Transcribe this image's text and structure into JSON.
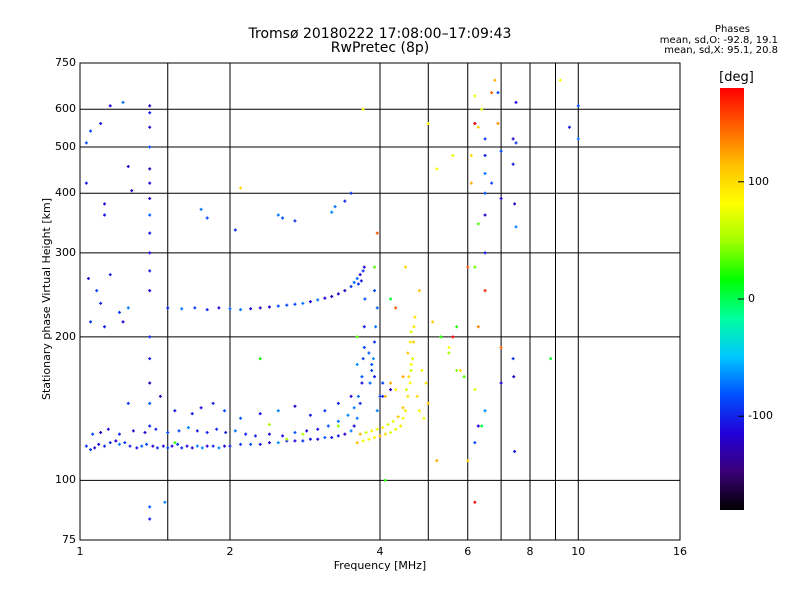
{
  "title_line1": "Tromsø 20180222 17:08:00–17:09:43",
  "title_line2": "RwPretec (8p)",
  "phases": {
    "heading": "Phases",
    "line_o": "mean, sd,O: -92.8, 19.1",
    "line_x": "mean, sd,X:  95.1, 20.8"
  },
  "colorbar": {
    "unit": "[deg]",
    "ticks": [
      "100",
      "0",
      "-100"
    ],
    "tick_values": [
      100,
      0,
      -100
    ],
    "range": [
      -180,
      180
    ],
    "colors": [
      "#000000",
      "#3a0078",
      "#2200d8",
      "#0050ff",
      "#00c8ff",
      "#00ffa0",
      "#00ff00",
      "#a0ff00",
      "#ffff00",
      "#ffc000",
      "#ff6000",
      "#ff0000"
    ]
  },
  "chart_data": {
    "type": "scatter",
    "title": "Tromsø 20180222 17:08:00–17:09:43",
    "subtitle": "RwPretec (8p)",
    "xlabel": "Frequency [MHz]",
    "ylabel": "Stationary phase Virtual Height [km]",
    "x_scale": "log",
    "y_scale": "log",
    "xlim": [
      1,
      16
    ],
    "ylim": [
      75,
      750
    ],
    "x_ticks": [
      1,
      2,
      4,
      6,
      8,
      10,
      16
    ],
    "x_tick_labels": [
      "1",
      "2",
      "4",
      "6",
      "8",
      "10",
      "16"
    ],
    "y_ticks": [
      75,
      100,
      200,
      300,
      400,
      500,
      600,
      750
    ],
    "y_tick_labels": [
      "75",
      "100",
      "200",
      "300",
      "400",
      "500",
      "600",
      "750"
    ],
    "grid": true,
    "vertical_gridlines": [
      2,
      4,
      6,
      8,
      10,
      1.5,
      5,
      7,
      9
    ],
    "series": [
      {
        "points": [
          [
            1.03,
            118
          ],
          [
            1.05,
            116
          ],
          [
            1.07,
            117
          ],
          [
            1.09,
            119
          ],
          [
            1.12,
            118
          ],
          [
            1.15,
            120
          ],
          [
            1.18,
            121
          ],
          [
            1.2,
            119
          ],
          [
            1.23,
            120
          ],
          [
            1.26,
            118
          ],
          [
            1.3,
            117
          ],
          [
            1.33,
            118
          ],
          [
            1.36,
            119
          ],
          [
            1.4,
            118
          ],
          [
            1.43,
            117
          ],
          [
            1.47,
            118
          ],
          [
            1.5,
            117
          ],
          [
            1.53,
            118
          ],
          [
            1.57,
            119
          ],
          [
            1.6,
            117
          ],
          [
            1.64,
            118
          ],
          [
            1.68,
            117
          ],
          [
            1.72,
            118
          ],
          [
            1.76,
            117
          ],
          [
            1.8,
            118
          ],
          [
            1.85,
            118
          ],
          [
            1.9,
            117
          ],
          [
            1.95,
            118
          ],
          [
            2.0,
            118
          ],
          [
            2.1,
            119
          ],
          [
            2.2,
            119
          ],
          [
            2.3,
            119
          ],
          [
            2.4,
            120
          ],
          [
            2.5,
            120
          ],
          [
            2.6,
            121
          ],
          [
            2.7,
            121
          ],
          [
            2.8,
            121
          ],
          [
            2.9,
            122
          ],
          [
            3.0,
            122
          ],
          [
            3.1,
            123
          ],
          [
            3.2,
            123
          ],
          [
            3.3,
            124
          ],
          [
            3.4,
            125
          ],
          [
            3.5,
            127
          ],
          [
            3.55,
            130
          ],
          [
            3.6,
            135
          ],
          [
            3.65,
            145
          ],
          [
            3.68,
            160
          ],
          [
            3.7,
            180
          ],
          [
            3.72,
            210
          ],
          [
            3.73,
            240
          ],
          [
            1.06,
            125
          ],
          [
            1.1,
            126
          ],
          [
            1.14,
            128
          ],
          [
            1.2,
            125
          ],
          [
            1.28,
            127
          ],
          [
            1.35,
            126
          ],
          [
            1.42,
            128
          ],
          [
            1.5,
            126
          ],
          [
            1.58,
            127
          ],
          [
            1.65,
            129
          ],
          [
            1.72,
            127
          ],
          [
            1.8,
            126
          ],
          [
            1.88,
            128
          ],
          [
            1.96,
            126
          ],
          [
            2.05,
            127
          ],
          [
            2.15,
            125
          ],
          [
            2.25,
            124
          ],
          [
            2.4,
            125
          ],
          [
            2.55,
            124
          ],
          [
            2.7,
            126
          ],
          [
            2.85,
            127
          ],
          [
            3.0,
            128
          ],
          [
            3.15,
            130
          ],
          [
            3.3,
            133
          ],
          [
            3.45,
            137
          ],
          [
            3.55,
            142
          ],
          [
            3.62,
            150
          ],
          [
            3.68,
            165
          ],
          [
            3.72,
            190
          ],
          [
            1.25,
            145
          ],
          [
            1.45,
            150
          ],
          [
            1.55,
            140
          ],
          [
            1.68,
            138
          ],
          [
            1.75,
            142
          ],
          [
            1.85,
            145
          ],
          [
            1.95,
            140
          ],
          [
            2.1,
            135
          ],
          [
            2.3,
            138
          ],
          [
            2.5,
            140
          ],
          [
            2.7,
            143
          ],
          [
            2.9,
            137
          ],
          [
            3.1,
            140
          ],
          [
            3.3,
            145
          ],
          [
            3.5,
            150
          ],
          [
            3.6,
            175
          ],
          [
            1.5,
            230
          ],
          [
            1.6,
            229
          ],
          [
            1.7,
            230
          ],
          [
            1.8,
            228
          ],
          [
            1.9,
            230
          ],
          [
            2.0,
            229
          ],
          [
            2.1,
            228
          ],
          [
            2.2,
            229
          ],
          [
            2.3,
            230
          ],
          [
            2.4,
            231
          ],
          [
            2.5,
            232
          ],
          [
            2.6,
            233
          ],
          [
            2.7,
            234
          ],
          [
            2.8,
            235
          ],
          [
            2.9,
            237
          ],
          [
            3.0,
            239
          ],
          [
            3.1,
            241
          ],
          [
            3.2,
            243
          ],
          [
            3.3,
            246
          ],
          [
            3.4,
            250
          ],
          [
            3.5,
            255
          ],
          [
            3.55,
            260
          ],
          [
            3.6,
            265
          ],
          [
            3.65,
            270
          ],
          [
            3.7,
            275
          ],
          [
            3.72,
            280
          ],
          [
            3.67,
            262
          ],
          [
            3.62,
            258
          ],
          [
            1.38,
            250
          ],
          [
            1.38,
            275
          ],
          [
            1.38,
            300
          ],
          [
            1.38,
            330
          ],
          [
            1.38,
            360
          ],
          [
            1.38,
            390
          ],
          [
            1.38,
            420
          ],
          [
            1.38,
            450
          ],
          [
            1.38,
            500
          ],
          [
            1.38,
            550
          ],
          [
            1.38,
            590
          ],
          [
            1.38,
            610
          ],
          [
            1.38,
            200
          ],
          [
            1.38,
            180
          ],
          [
            1.38,
            160
          ],
          [
            1.38,
            145
          ],
          [
            1.38,
            130
          ],
          [
            1.38,
            88
          ],
          [
            1.38,
            83
          ],
          [
            1.48,
            90
          ],
          [
            1.03,
            510
          ],
          [
            1.05,
            540
          ],
          [
            1.03,
            420
          ],
          [
            1.1,
            560
          ],
          [
            1.15,
            610
          ],
          [
            1.22,
            620
          ],
          [
            1.25,
            455
          ],
          [
            1.27,
            405
          ],
          [
            1.12,
            380
          ],
          [
            1.12,
            360
          ],
          [
            1.04,
            265
          ],
          [
            1.08,
            250
          ],
          [
            1.1,
            235
          ],
          [
            1.15,
            270
          ],
          [
            1.2,
            225
          ],
          [
            1.25,
            230
          ],
          [
            1.05,
            215
          ],
          [
            1.12,
            210
          ],
          [
            1.22,
            215
          ],
          [
            1.75,
            370
          ],
          [
            1.8,
            355
          ],
          [
            2.05,
            335
          ],
          [
            2.5,
            360
          ],
          [
            2.55,
            355
          ],
          [
            2.7,
            350
          ],
          [
            3.2,
            365
          ],
          [
            3.25,
            375
          ],
          [
            3.4,
            385
          ],
          [
            3.5,
            400
          ],
          [
            3.9,
            250
          ],
          [
            3.95,
            230
          ],
          [
            3.92,
            210
          ],
          [
            3.9,
            195
          ],
          [
            3.88,
            180
          ],
          [
            3.85,
            170
          ],
          [
            3.82,
            160
          ],
          [
            4.05,
            150
          ],
          [
            4.2,
            155
          ],
          [
            3.95,
            140
          ],
          [
            4.0,
            150
          ],
          [
            4.05,
            160
          ],
          [
            3.9,
            165
          ],
          [
            3.85,
            175
          ],
          [
            3.8,
            185
          ],
          [
            6.5,
            520
          ],
          [
            6.5,
            480
          ],
          [
            6.5,
            440
          ],
          [
            6.5,
            400
          ],
          [
            6.5,
            360
          ],
          [
            6.5,
            300
          ],
          [
            6.5,
            250
          ],
          [
            6.5,
            140
          ],
          [
            6.2,
            120
          ],
          [
            7.0,
            390
          ],
          [
            7.0,
            490
          ],
          [
            7.0,
            160
          ],
          [
            7.4,
            520
          ],
          [
            7.5,
            510
          ],
          [
            7.4,
            460
          ],
          [
            7.45,
            380
          ],
          [
            7.5,
            340
          ],
          [
            7.4,
            180
          ],
          [
            7.42,
            165
          ],
          [
            7.45,
            115
          ],
          [
            6.3,
            130
          ],
          [
            6.9,
            650
          ],
          [
            7.5,
            620
          ],
          [
            10,
            610
          ],
          [
            9.6,
            550
          ],
          [
            10,
            520
          ],
          [
            6.7,
            420
          ],
          [
            6.2,
            560
          ]
        ],
        "phase_deg": -95
      },
      {
        "points": [
          [
            3.6,
            120
          ],
          [
            3.7,
            121
          ],
          [
            3.8,
            122
          ],
          [
            3.9,
            123
          ],
          [
            4.0,
            124
          ],
          [
            4.1,
            125
          ],
          [
            4.2,
            126
          ],
          [
            4.3,
            128
          ],
          [
            4.4,
            130
          ],
          [
            4.45,
            135
          ],
          [
            4.5,
            140
          ],
          [
            4.55,
            150
          ],
          [
            4.6,
            160
          ],
          [
            4.62,
            170
          ],
          [
            4.65,
            180
          ],
          [
            4.67,
            195
          ],
          [
            4.68,
            210
          ],
          [
            4.7,
            220
          ],
          [
            3.65,
            125
          ],
          [
            3.75,
            126
          ],
          [
            3.85,
            127
          ],
          [
            3.95,
            128
          ],
          [
            4.05,
            129
          ],
          [
            4.15,
            131
          ],
          [
            4.25,
            133
          ],
          [
            4.35,
            136
          ],
          [
            4.45,
            142
          ],
          [
            4.52,
            155
          ],
          [
            4.57,
            165
          ],
          [
            4.62,
            175
          ],
          [
            4.8,
            140
          ],
          [
            4.9,
            135
          ],
          [
            5.0,
            145
          ],
          [
            4.95,
            160
          ],
          [
            4.85,
            170
          ],
          [
            4.75,
            150
          ],
          [
            4.1,
            150
          ],
          [
            4.2,
            160
          ],
          [
            4.3,
            155
          ],
          [
            4.45,
            165
          ],
          [
            4.55,
            185
          ],
          [
            4.6,
            195
          ],
          [
            4.62,
            205
          ],
          [
            6.2,
            640
          ],
          [
            6.4,
            600
          ],
          [
            6.3,
            550
          ],
          [
            6.1,
            480
          ],
          [
            6.8,
            690
          ],
          [
            9.2,
            690
          ],
          [
            5.0,
            560
          ],
          [
            5.2,
            450
          ],
          [
            5.6,
            480
          ],
          [
            6.1,
            420
          ],
          [
            4.5,
            280
          ],
          [
            4.8,
            250
          ],
          [
            5.1,
            215
          ],
          [
            5.5,
            190
          ],
          [
            5.8,
            170
          ],
          [
            6.2,
            155
          ],
          [
            6.0,
            110
          ],
          [
            5.2,
            110
          ],
          [
            2.1,
            410
          ],
          [
            3.7,
            600
          ]
        ],
        "phase_deg": 95
      },
      {
        "points": [
          [
            2.3,
            180
          ],
          [
            3.6,
            200
          ],
          [
            3.9,
            280
          ],
          [
            4.2,
            240
          ],
          [
            5.3,
            200
          ],
          [
            5.5,
            185
          ],
          [
            5.7,
            170
          ],
          [
            5.9,
            165
          ],
          [
            6.3,
            345
          ],
          [
            6.2,
            280
          ],
          [
            5.7,
            210
          ],
          [
            6.4,
            130
          ],
          [
            8.8,
            180
          ],
          [
            4.1,
            100
          ],
          [
            2.8,
            125
          ],
          [
            3.3,
            130
          ],
          [
            2.6,
            122
          ],
          [
            1.55,
            120
          ],
          [
            2.4,
            131
          ]
        ],
        "phase_deg": 30
      },
      {
        "points": [
          [
            6.5,
            250
          ],
          [
            6.3,
            210
          ],
          [
            5.6,
            200
          ],
          [
            6.0,
            280
          ],
          [
            6.7,
            650
          ],
          [
            7.0,
            190
          ],
          [
            6.9,
            560
          ],
          [
            4.3,
            230
          ],
          [
            3.95,
            330
          ],
          [
            6.2,
            560
          ],
          [
            6.2,
            90
          ]
        ],
        "phase_deg": 160
      }
    ]
  }
}
